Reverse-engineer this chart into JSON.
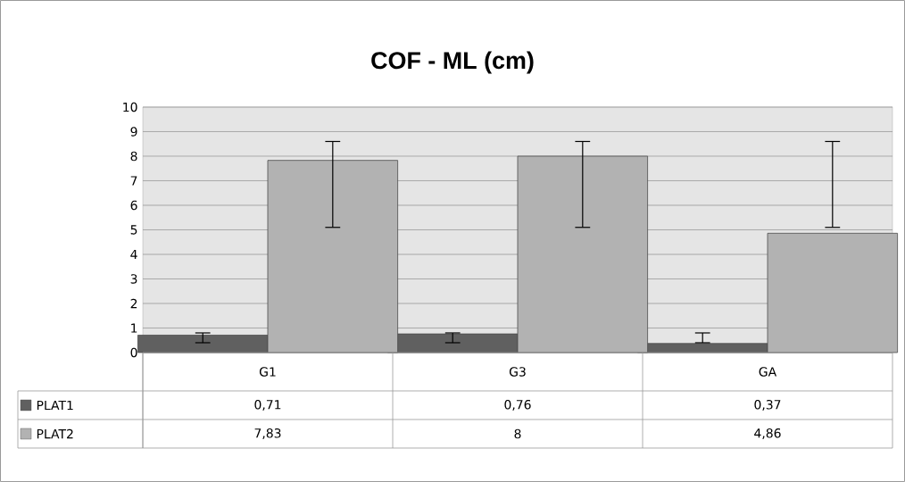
{
  "chart_data": {
    "type": "bar",
    "title": "COF - ML (cm)",
    "categories": [
      "G1",
      "G3",
      "GA"
    ],
    "series": [
      {
        "name": "PLAT1",
        "color": "#606060",
        "values": [
          0.71,
          0.76,
          0.37
        ],
        "value_labels": [
          "0,71",
          "0,76",
          "0,37"
        ],
        "errors": [
          [
            0.4,
            0.8
          ],
          [
            0.4,
            0.8
          ],
          [
            0.4,
            0.8
          ]
        ]
      },
      {
        "name": "PLAT2",
        "color": "#b2b2b2",
        "values": [
          7.83,
          8,
          4.86
        ],
        "value_labels": [
          "7,83",
          "8",
          "4,86"
        ],
        "errors": [
          [
            5.1,
            8.6
          ],
          [
            5.1,
            8.6
          ],
          [
            5.1,
            8.6
          ]
        ]
      }
    ],
    "ylim": [
      0,
      10
    ],
    "yticks": [
      0,
      1,
      2,
      3,
      4,
      5,
      6,
      7,
      8,
      9,
      10
    ],
    "grid": "y",
    "legend": "bottom"
  }
}
